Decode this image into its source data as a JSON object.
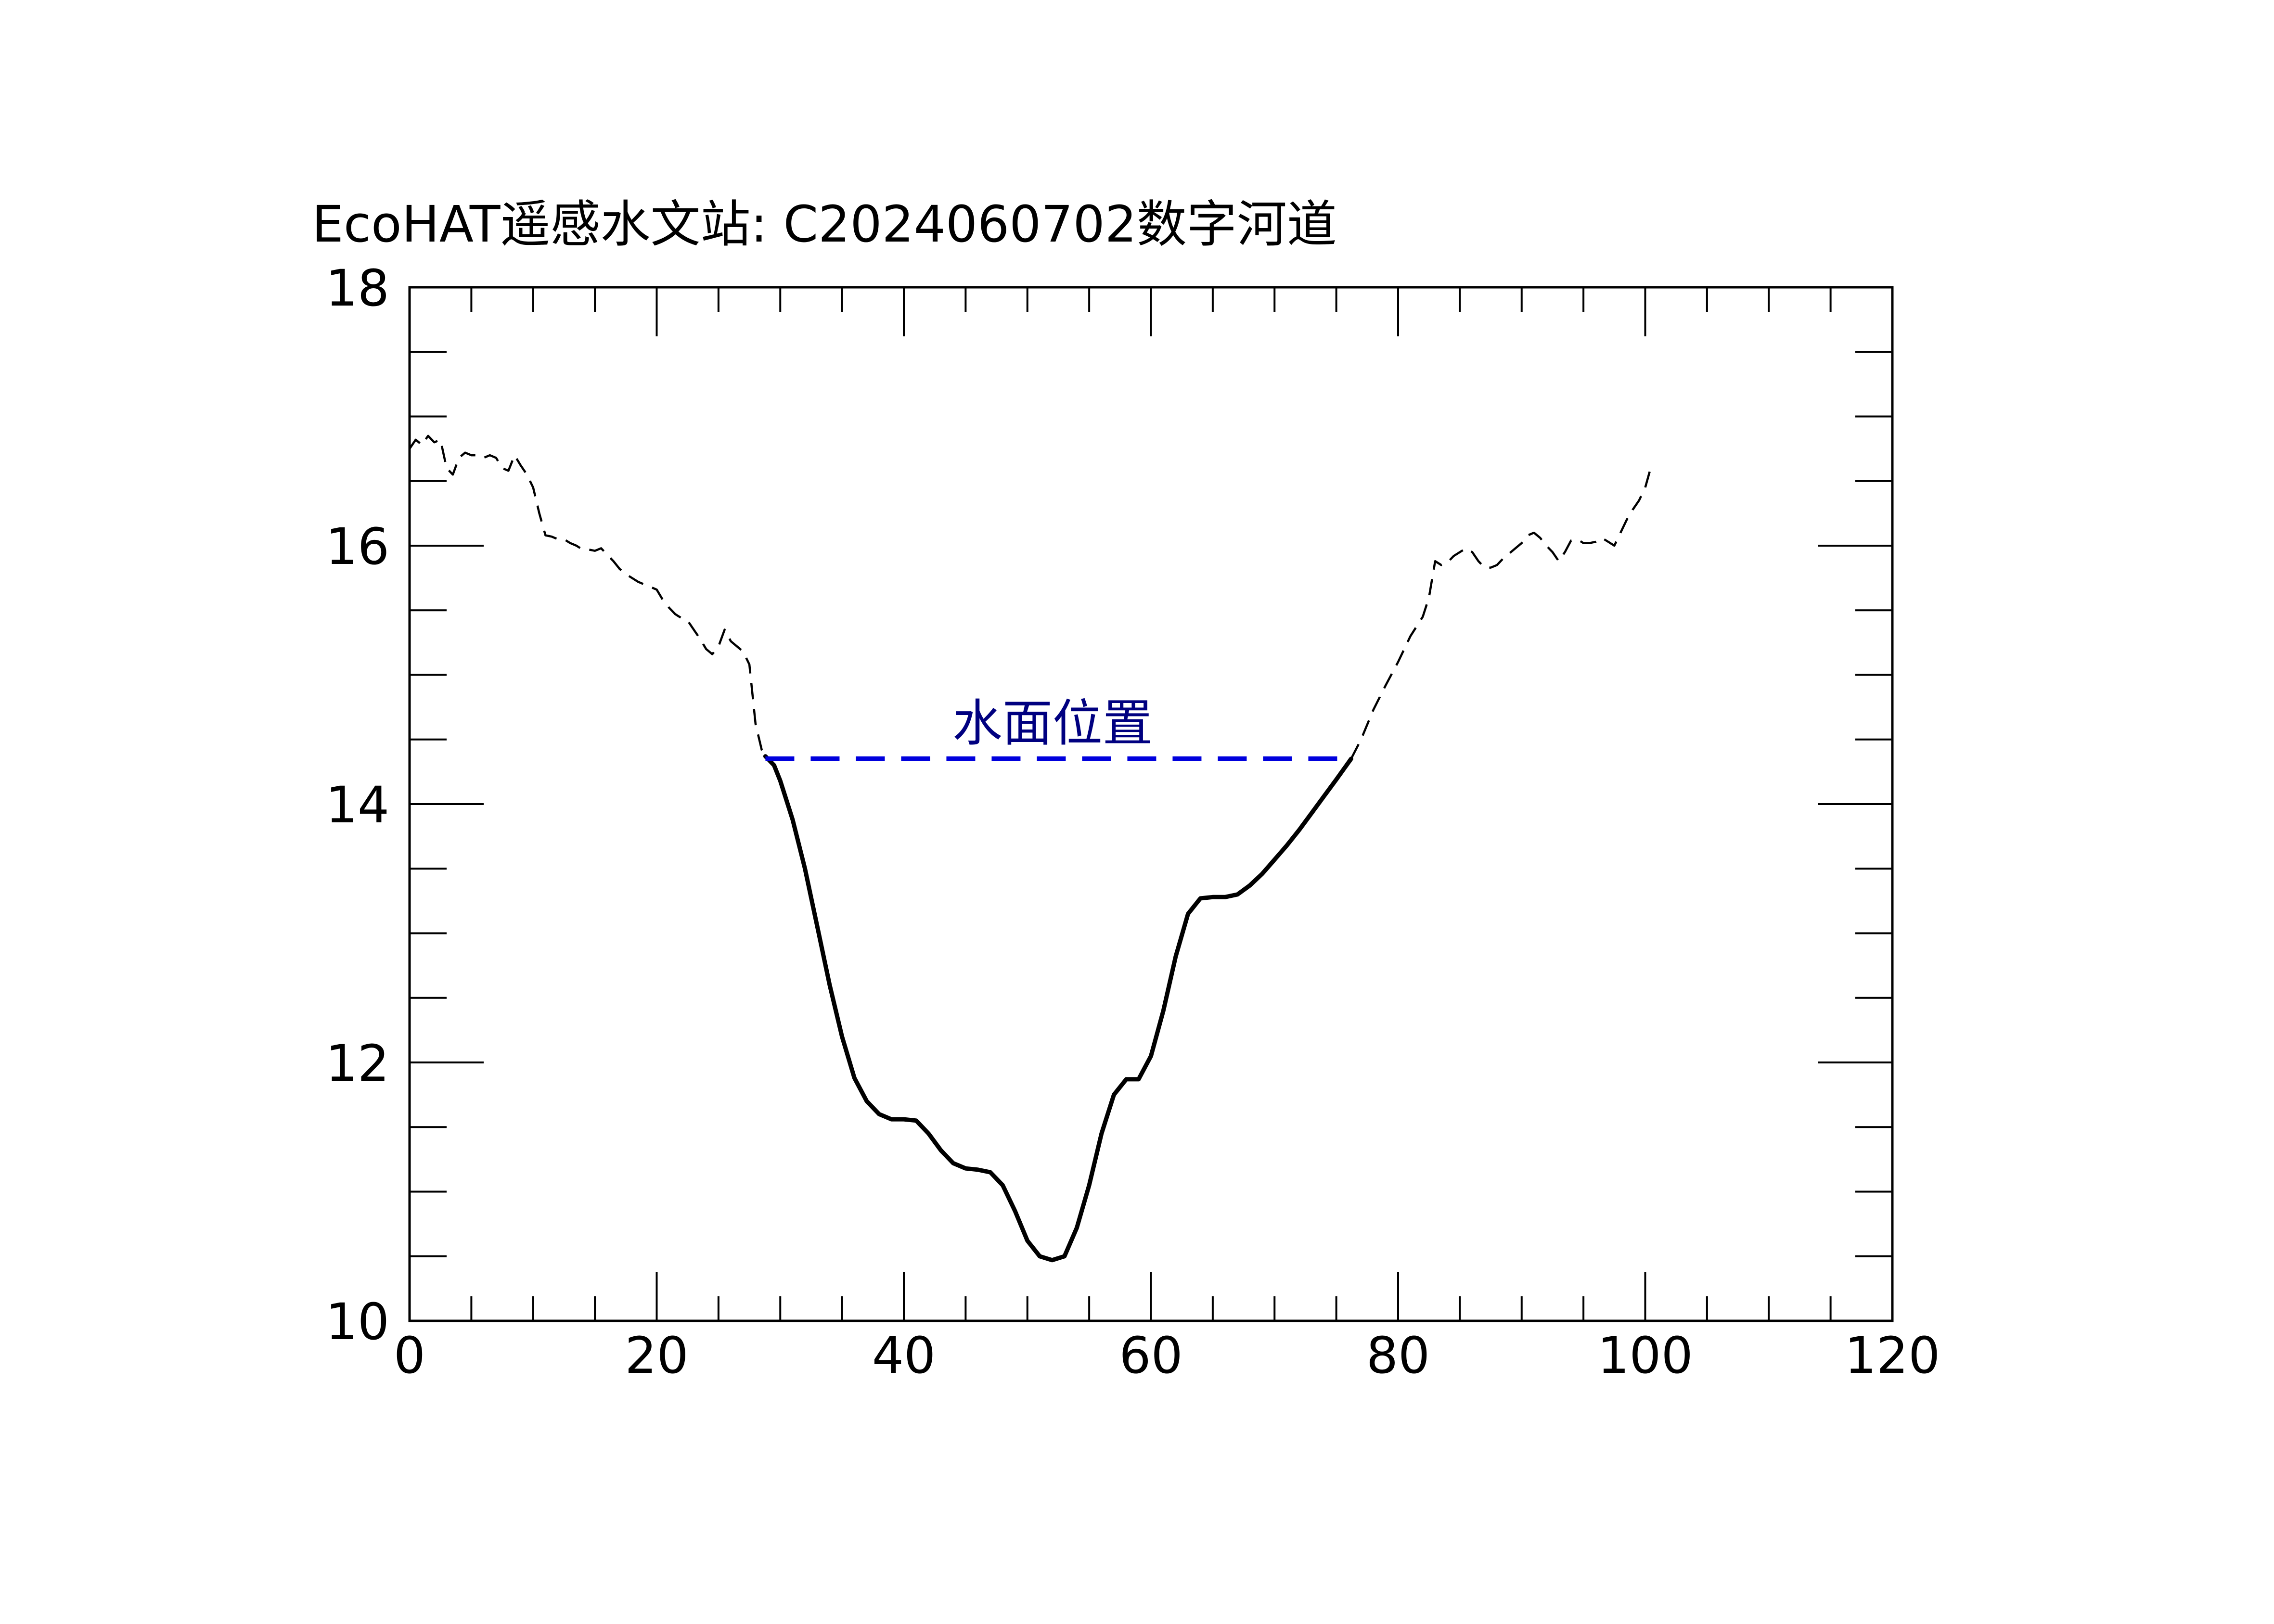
{
  "chart_data": {
    "type": "line",
    "title": "EcoHAT遥感水文站: C2024060702数字河道",
    "xlabel": "",
    "ylabel": "",
    "xlim": [
      0,
      120
    ],
    "ylim": [
      10,
      18
    ],
    "x_major_ticks": [
      0,
      20,
      40,
      60,
      80,
      100,
      120
    ],
    "x_minor_step": 5,
    "y_major_ticks": [
      10,
      12,
      14,
      16,
      18
    ],
    "y_minor_step": 0.5,
    "x_tick_labels": [
      "0",
      "20",
      "40",
      "60",
      "80",
      "100",
      "120"
    ],
    "y_tick_labels": [
      "10",
      "12",
      "14",
      "16",
      "18"
    ],
    "grid": false,
    "water_level": {
      "label": "水面位置",
      "y": 14.35,
      "x_start": 28.8,
      "x_end": 76.2,
      "color": "#0000dd",
      "label_color": "#000080"
    },
    "series": [
      {
        "style": "dashed",
        "color": "#000000",
        "points": [
          [
            0,
            16.75
          ],
          [
            0.5,
            16.82
          ],
          [
            1,
            16.78
          ],
          [
            1.5,
            16.85
          ],
          [
            2,
            16.8
          ],
          [
            2.5,
            16.82
          ],
          [
            3,
            16.6
          ],
          [
            3.5,
            16.55
          ],
          [
            4,
            16.68
          ],
          [
            4.5,
            16.72
          ],
          [
            5,
            16.7
          ],
          [
            5.5,
            16.7
          ],
          [
            6,
            16.68
          ],
          [
            6.5,
            16.7
          ],
          [
            7,
            16.68
          ],
          [
            7.5,
            16.6
          ],
          [
            8,
            16.58
          ],
          [
            8.5,
            16.7
          ],
          [
            9,
            16.62
          ],
          [
            9.5,
            16.55
          ],
          [
            10,
            16.45
          ],
          [
            10.5,
            16.25
          ],
          [
            11,
            16.08
          ],
          [
            11.5,
            16.07
          ],
          [
            12,
            16.05
          ],
          [
            12.5,
            16.05
          ],
          [
            13,
            16.02
          ],
          [
            13.5,
            16
          ],
          [
            14,
            15.97
          ],
          [
            14.5,
            15.97
          ],
          [
            15,
            15.96
          ],
          [
            15.5,
            15.98
          ],
          [
            16,
            15.93
          ],
          [
            16.5,
            15.88
          ],
          [
            17,
            15.82
          ],
          [
            17.5,
            15.78
          ],
          [
            18,
            15.75
          ],
          [
            18.5,
            15.72
          ],
          [
            19,
            15.7
          ],
          [
            19.5,
            15.68
          ],
          [
            20,
            15.66
          ],
          [
            20.5,
            15.58
          ],
          [
            21,
            15.52
          ],
          [
            21.5,
            15.47
          ],
          [
            22,
            15.44
          ],
          [
            22.5,
            15.42
          ],
          [
            23,
            15.35
          ],
          [
            23.5,
            15.28
          ],
          [
            24,
            15.2
          ],
          [
            24.5,
            15.16
          ],
          [
            25,
            15.22
          ],
          [
            25.5,
            15.35
          ],
          [
            26,
            15.26
          ],
          [
            26.5,
            15.22
          ],
          [
            27,
            15.18
          ],
          [
            27.5,
            15.08
          ],
          [
            28,
            14.62
          ],
          [
            28.5,
            14.42
          ],
          [
            28.8,
            14.37
          ]
        ]
      },
      {
        "style": "solid",
        "color": "#000000",
        "points": [
          [
            28.8,
            14.37
          ],
          [
            29.5,
            14.3
          ],
          [
            30,
            14.18
          ],
          [
            31,
            13.88
          ],
          [
            32,
            13.5
          ],
          [
            33,
            13.05
          ],
          [
            34,
            12.6
          ],
          [
            35,
            12.2
          ],
          [
            36,
            11.88
          ],
          [
            37,
            11.7
          ],
          [
            38,
            11.6
          ],
          [
            39,
            11.56
          ],
          [
            40,
            11.56
          ],
          [
            41,
            11.55
          ],
          [
            42,
            11.45
          ],
          [
            43,
            11.32
          ],
          [
            44,
            11.22
          ],
          [
            45,
            11.18
          ],
          [
            46,
            11.17
          ],
          [
            47,
            11.15
          ],
          [
            48,
            11.05
          ],
          [
            49,
            10.85
          ],
          [
            50,
            10.62
          ],
          [
            51,
            10.5
          ],
          [
            52,
            10.47
          ],
          [
            53,
            10.5
          ],
          [
            54,
            10.72
          ],
          [
            55,
            11.05
          ],
          [
            56,
            11.45
          ],
          [
            57,
            11.75
          ],
          [
            58,
            11.87
          ],
          [
            59,
            11.87
          ],
          [
            60,
            12.05
          ],
          [
            61,
            12.4
          ],
          [
            62,
            12.82
          ],
          [
            63,
            13.15
          ],
          [
            64,
            13.27
          ],
          [
            65,
            13.28
          ],
          [
            66,
            13.28
          ],
          [
            67,
            13.3
          ],
          [
            68,
            13.37
          ],
          [
            69,
            13.46
          ],
          [
            70,
            13.57
          ],
          [
            71,
            13.68
          ],
          [
            72,
            13.8
          ],
          [
            73,
            13.93
          ],
          [
            74,
            14.06
          ],
          [
            75,
            14.19
          ],
          [
            76.2,
            14.35
          ]
        ]
      },
      {
        "style": "dashed",
        "color": "#000000",
        "points": [
          [
            76.2,
            14.35
          ],
          [
            77,
            14.5
          ],
          [
            78,
            14.73
          ],
          [
            79,
            14.92
          ],
          [
            80,
            15.1
          ],
          [
            81,
            15.3
          ],
          [
            82,
            15.45
          ],
          [
            82.5,
            15.6
          ],
          [
            83,
            15.88
          ],
          [
            83.5,
            15.85
          ],
          [
            84,
            15.87
          ],
          [
            84.5,
            15.92
          ],
          [
            85,
            15.95
          ],
          [
            85.5,
            15.98
          ],
          [
            86,
            15.95
          ],
          [
            86.5,
            15.88
          ],
          [
            87,
            15.83
          ],
          [
            87.5,
            15.83
          ],
          [
            88,
            15.85
          ],
          [
            88.5,
            15.9
          ],
          [
            89,
            15.94
          ],
          [
            89.5,
            15.98
          ],
          [
            90,
            16.02
          ],
          [
            90.5,
            16.08
          ],
          [
            91,
            16.1
          ],
          [
            91.5,
            16.06
          ],
          [
            92,
            16.0
          ],
          [
            92.5,
            15.95
          ],
          [
            93,
            15.88
          ],
          [
            93.5,
            15.95
          ],
          [
            94,
            16.04
          ],
          [
            94.5,
            16.05
          ],
          [
            95,
            16.02
          ],
          [
            95.5,
            16.02
          ],
          [
            96,
            16.03
          ],
          [
            96.5,
            16.06
          ],
          [
            97,
            16.03
          ],
          [
            97.5,
            16.0
          ],
          [
            98,
            16.1
          ],
          [
            98.5,
            16.2
          ],
          [
            99,
            16.28
          ],
          [
            99.5,
            16.35
          ],
          [
            100,
            16.45
          ],
          [
            100.5,
            16.62
          ]
        ]
      }
    ]
  }
}
